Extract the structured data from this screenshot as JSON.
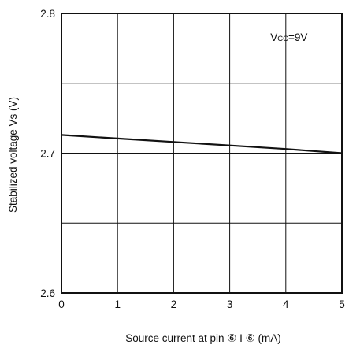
{
  "chart_data": {
    "type": "line",
    "title": "",
    "xlabel": "Source current at pin ⑥ I ⑥  (mA)",
    "ylabel": "Stabilized voltage Vs (V)",
    "xlim": [
      0,
      5
    ],
    "ylim": [
      2.6,
      2.8
    ],
    "x_ticks": [
      0,
      1,
      2,
      3,
      4,
      5
    ],
    "x_tick_labels": [
      "0",
      "1",
      "2",
      "3",
      "4",
      "5"
    ],
    "y_ticks": [
      2.6,
      2.65,
      2.7,
      2.75,
      2.8
    ],
    "y_tick_labels": [
      "2.6",
      "",
      "2.7",
      "",
      "2.8"
    ],
    "grid": true,
    "annotation": {
      "prefix": "V",
      "subscript": "CC",
      "suffix": "=9V"
    },
    "series": [
      {
        "x": [
          0,
          1,
          2,
          3,
          4,
          5
        ],
        "y": [
          2.713,
          2.7105,
          2.708,
          2.7055,
          2.703,
          2.7
        ]
      }
    ],
    "colors": {
      "line": "#111111",
      "grid": "#111111",
      "frame": "#111111",
      "background": "#ffffff"
    }
  }
}
